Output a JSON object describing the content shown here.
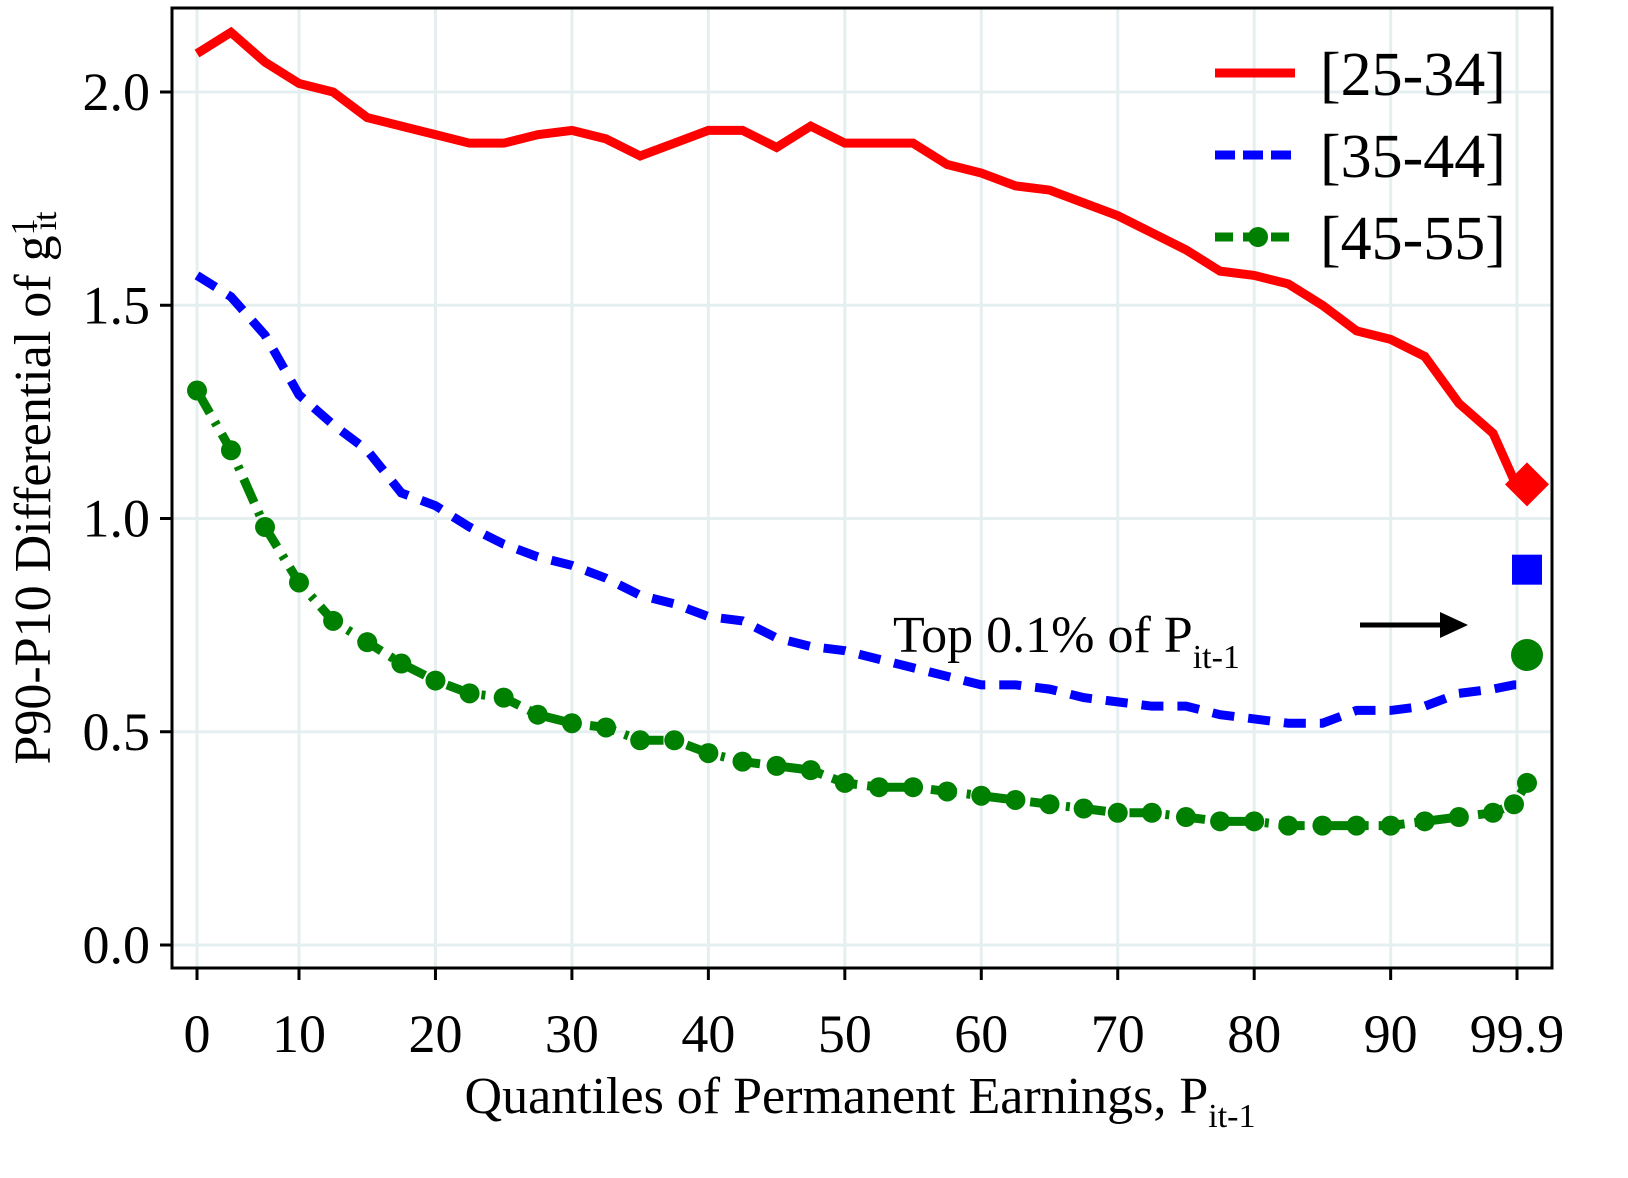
{
  "chart_data": {
    "type": "line",
    "xlabel": "Quantiles of Permanent Earnings, P",
    "xlabel_sub": "it-1",
    "ylabel": "P90-P10 Differential of g",
    "ylabel_sup": "1",
    "ylabel_sub": "it",
    "ylim": [
      0,
      2.15
    ],
    "xlim": [
      0,
      99.9
    ],
    "yticks": [
      0.0,
      0.5,
      1.0,
      1.5,
      2.0
    ],
    "ytick_labels": [
      "0.0",
      "0.5",
      "1.0",
      "1.5",
      "2.0"
    ],
    "xticks": [
      0,
      10,
      20,
      30,
      40,
      50,
      60,
      70,
      80,
      90,
      99.9
    ],
    "xtick_labels": [
      "0",
      "10",
      "20",
      "30",
      "40",
      "50",
      "60",
      "70",
      "80",
      "90",
      "99.9"
    ],
    "grid": true,
    "legend_position": "top-right",
    "x": [
      0,
      3.33,
      6.67,
      10,
      12.5,
      15,
      17.5,
      20,
      22.5,
      25,
      27.5,
      30,
      32.5,
      35,
      37.5,
      40,
      42.5,
      45,
      47.5,
      50,
      52.5,
      55,
      57.5,
      60,
      62.5,
      65,
      67.5,
      70,
      72.5,
      75,
      77.5,
      80,
      82.5,
      85,
      87.5,
      90,
      92.5,
      95,
      97.5,
      99,
      99.9
    ],
    "series": [
      {
        "name": "[25-34]",
        "color": "#ff0000",
        "style": "solid",
        "marker": "none",
        "values": [
          2.09,
          2.14,
          2.07,
          2.02,
          2.0,
          1.94,
          1.92,
          1.9,
          1.88,
          1.88,
          1.9,
          1.91,
          1.89,
          1.85,
          1.88,
          1.91,
          1.91,
          1.87,
          1.92,
          1.88,
          1.88,
          1.88,
          1.83,
          1.81,
          1.78,
          1.77,
          1.74,
          1.71,
          1.67,
          1.63,
          1.58,
          1.57,
          1.55,
          1.5,
          1.44,
          1.42,
          1.38,
          1.27,
          1.2,
          1.09,
          1.06
        ],
        "top_value": 1.08,
        "top_marker": "diamond"
      },
      {
        "name": "[35-44]",
        "color": "#0000ff",
        "style": "dashed",
        "marker": "none",
        "values": [
          1.57,
          1.52,
          1.43,
          1.29,
          1.22,
          1.16,
          1.06,
          1.03,
          0.98,
          0.94,
          0.91,
          0.89,
          0.86,
          0.82,
          0.8,
          0.77,
          0.76,
          0.72,
          0.7,
          0.69,
          0.67,
          0.65,
          0.63,
          0.61,
          0.61,
          0.6,
          0.58,
          0.57,
          0.56,
          0.56,
          0.54,
          0.53,
          0.52,
          0.52,
          0.55,
          0.55,
          0.56,
          0.59,
          0.6,
          0.61,
          0.61
        ],
        "top_value": 0.88,
        "top_marker": "square"
      },
      {
        "name": "[45-55]",
        "color": "#008000",
        "style": "dash-dot",
        "marker": "circle",
        "values": [
          1.3,
          1.16,
          0.98,
          0.85,
          0.76,
          0.71,
          0.66,
          0.62,
          0.59,
          0.58,
          0.54,
          0.52,
          0.51,
          0.48,
          0.48,
          0.45,
          0.43,
          0.42,
          0.41,
          0.38,
          0.37,
          0.37,
          0.36,
          0.35,
          0.34,
          0.33,
          0.32,
          0.31,
          0.31,
          0.3,
          0.29,
          0.29,
          0.28,
          0.28,
          0.28,
          0.28,
          0.29,
          0.3,
          0.31,
          0.33,
          0.38
        ],
        "top_value": 0.68,
        "top_marker": "circle"
      }
    ],
    "annotation": {
      "text": "Top 0.1% of P",
      "sub": "it-1",
      "arrow": "right"
    }
  }
}
